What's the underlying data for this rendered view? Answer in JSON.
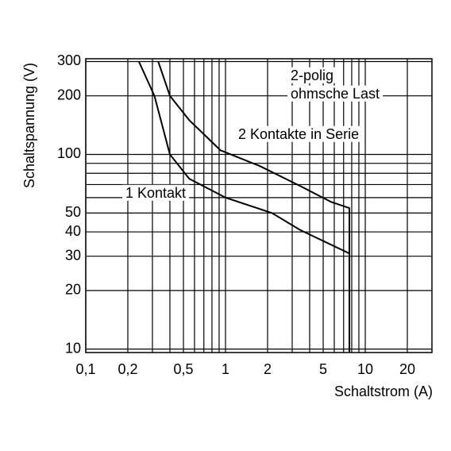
{
  "chart_data": {
    "type": "line",
    "xlabel": "Schaltstrom (A)",
    "ylabel": "Schaltspannung (V)",
    "annotations": [
      "2-polig",
      "ohmsche Last"
    ],
    "xscale": "log",
    "yscale": "log",
    "grid": true,
    "color": "#000000",
    "xlim": [
      0.1,
      30
    ],
    "ylim": [
      9.6,
      310
    ],
    "xticks": [
      {
        "value": 0.1,
        "label": "0,1"
      },
      {
        "value": 0.2,
        "label": "0,2"
      },
      {
        "value": 0.5,
        "label": "0,5"
      },
      1,
      2,
      5,
      10,
      20
    ],
    "minor_xticks": [
      0.3,
      0.4,
      0.6,
      0.7,
      0.8,
      0.9,
      3,
      4,
      6,
      7,
      8,
      9
    ],
    "yticks": [
      10,
      20,
      30,
      40,
      50,
      100,
      200,
      300
    ],
    "minor_yticks": [
      60,
      70,
      80,
      90
    ],
    "series": [
      {
        "name": "1 Kontakt",
        "color": "#000000",
        "x": [
          0.24,
          0.31,
          0.4,
          0.55,
          1.0,
          2.15,
          3.4,
          7.7
        ],
        "values": [
          300,
          200,
          100,
          75,
          60,
          50,
          41,
          31
        ]
      },
      {
        "name": "2 Kontakte in Serie",
        "color": "#000000",
        "x": [
          0.33,
          0.4,
          0.55,
          0.92,
          1.77,
          3.4,
          5.7,
          7.7,
          7.7
        ],
        "values": [
          300,
          200,
          150,
          105,
          87,
          69,
          57,
          53,
          9.6
        ]
      }
    ]
  }
}
